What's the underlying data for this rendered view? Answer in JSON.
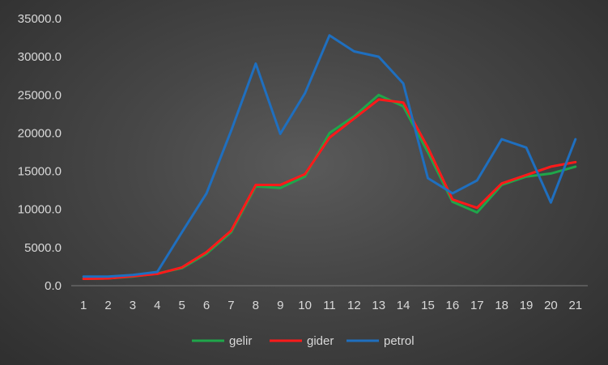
{
  "chart_data": {
    "type": "line",
    "title": "",
    "xlabel": "",
    "ylabel": "",
    "categories": [
      "1",
      "2",
      "3",
      "4",
      "5",
      "6",
      "7",
      "8",
      "9",
      "10",
      "11",
      "12",
      "13",
      "14",
      "15",
      "16",
      "17",
      "18",
      "19",
      "20",
      "21"
    ],
    "ylim": [
      0,
      35000
    ],
    "y_ticks": [
      "0.0",
      "5000.0",
      "10000.0",
      "15000.0",
      "20000.0",
      "25000.0",
      "30000.0",
      "35000.0"
    ],
    "grid": false,
    "legend_position": "bottom",
    "series": [
      {
        "name": "gelir",
        "color": "#1fa64a",
        "values": [
          900,
          950,
          1200,
          1600,
          2300,
          4200,
          7000,
          13000,
          12800,
          14300,
          20000,
          22200,
          25000,
          23500,
          17500,
          11000,
          9600,
          13200,
          14300,
          14700,
          15600
        ]
      },
      {
        "name": "gider",
        "color": "#ff1a1a",
        "values": [
          900,
          950,
          1250,
          1550,
          2400,
          4400,
          7200,
          13200,
          13200,
          14600,
          19400,
          21900,
          24400,
          24000,
          18100,
          11300,
          10200,
          13400,
          14500,
          15600,
          16200
        ]
      },
      {
        "name": "petrol",
        "color": "#1f6fbf",
        "values": [
          1200,
          1200,
          1400,
          1800,
          7000,
          12100,
          20300,
          29100,
          19900,
          25200,
          32800,
          30700,
          30000,
          26500,
          14100,
          12100,
          13800,
          19200,
          18100,
          10900,
          19200
        ]
      }
    ]
  }
}
